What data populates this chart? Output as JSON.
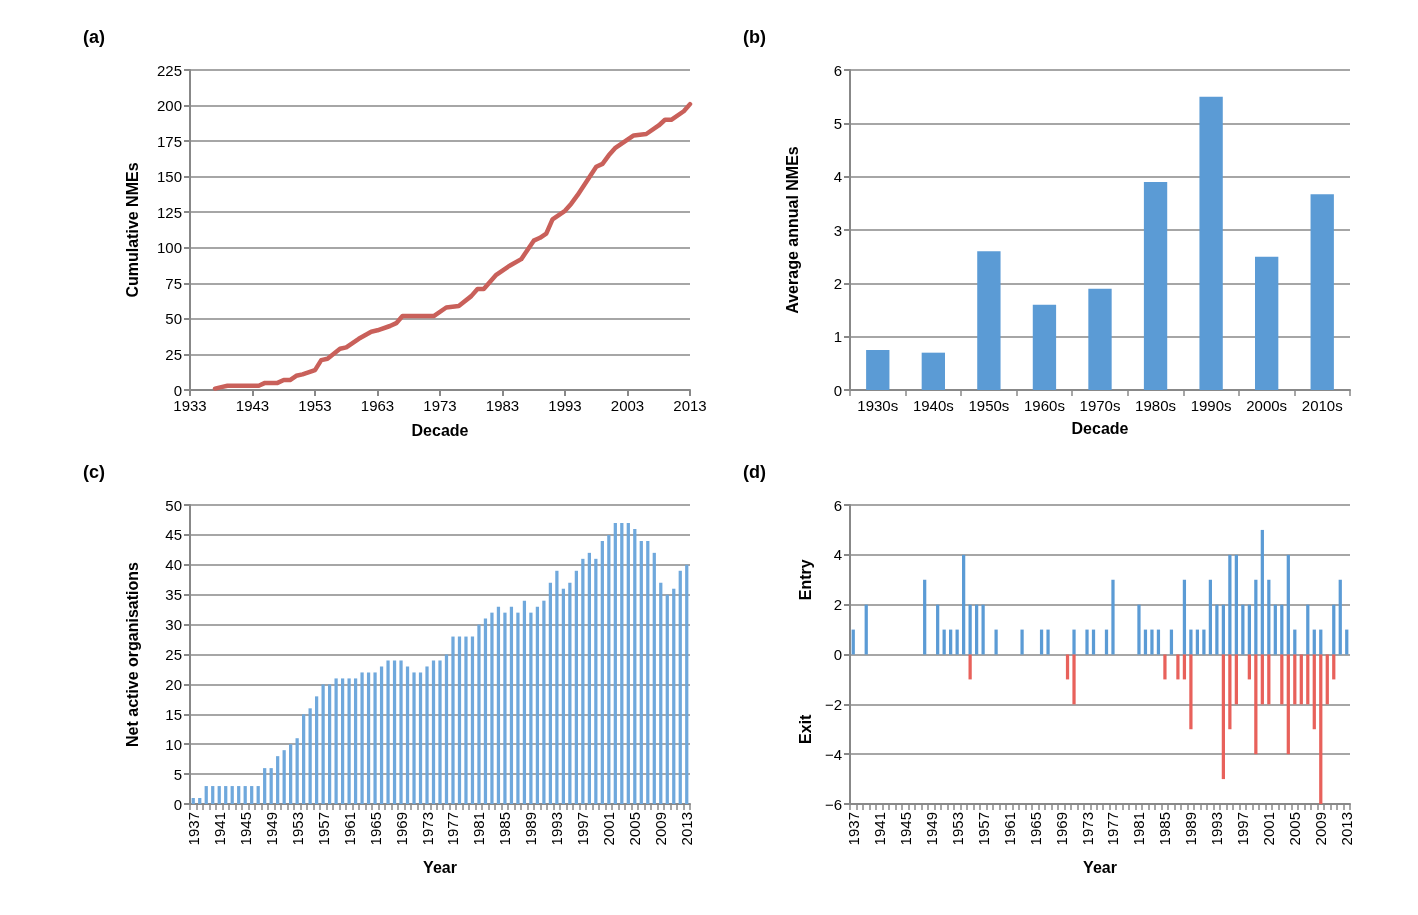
{
  "chart_data": [
    {
      "type": "line",
      "title": "(a)",
      "xlabel": "Decade",
      "ylabel": "Cumulative NMEs",
      "marker": "none",
      "grid": "y",
      "x": [
        1937,
        1938,
        1939,
        1944,
        1945,
        1947,
        1948,
        1949,
        1950,
        1951,
        1953,
        1954,
        1955,
        1957,
        1958,
        1960,
        1962,
        1963,
        1965,
        1966,
        1967,
        1969,
        1972,
        1974,
        1976,
        1978,
        1979,
        1980,
        1982,
        1983,
        1984,
        1986,
        1988,
        1989,
        1990,
        1991,
        1993,
        1994,
        1995,
        1998,
        1999,
        2000,
        2001,
        2003,
        2004,
        2006,
        2008,
        2009,
        2010,
        2012,
        2013
      ],
      "series": [
        {
          "color": "#c9605a",
          "values": [
            1,
            2,
            3,
            3,
            5,
            5,
            7,
            7,
            10,
            11,
            14,
            21,
            22,
            29,
            30,
            36,
            41,
            42,
            45,
            47,
            52,
            52,
            52,
            58,
            59,
            66,
            71,
            71,
            81,
            84,
            87,
            92,
            105,
            107,
            110,
            120,
            126,
            131,
            137,
            157,
            159,
            165,
            170,
            176,
            179,
            180,
            186,
            190,
            190,
            196,
            201
          ]
        }
      ],
      "xlim": [
        1933,
        2013
      ],
      "xticks": [
        1933,
        1943,
        1953,
        1963,
        1973,
        1983,
        1993,
        2003,
        2013
      ],
      "ylim": [
        0,
        225
      ],
      "yticks": [
        0,
        25,
        50,
        75,
        100,
        125,
        150,
        175,
        200,
        225
      ]
    },
    {
      "type": "bar",
      "title": "(b)",
      "xlabel": "Decade",
      "ylabel": "Average annual NMEs",
      "grid": "y",
      "categories": [
        "1930s",
        "1940s",
        "1950s",
        "1960s",
        "1970s",
        "1980s",
        "1990s",
        "2000s",
        "2010s"
      ],
      "series": [
        {
          "color": "#5b9bd5",
          "values": [
            0.75,
            0.7,
            2.6,
            1.6,
            1.9,
            3.9,
            5.5,
            2.5,
            3.67
          ]
        }
      ],
      "ylim": [
        0,
        6
      ],
      "yticks": [
        0,
        1,
        2,
        3,
        4,
        5,
        6
      ]
    },
    {
      "type": "bar",
      "title": "(c)",
      "xlabel": "Year",
      "ylabel": "Net active organisations",
      "grid": "y",
      "categories": [
        "1937",
        null,
        null,
        null,
        "1941",
        null,
        null,
        null,
        "1945",
        null,
        null,
        null,
        "1949",
        null,
        null,
        null,
        "1953",
        null,
        null,
        null,
        "1957",
        null,
        null,
        null,
        "1961",
        null,
        null,
        null,
        "1965",
        null,
        null,
        null,
        "1969",
        null,
        null,
        null,
        "1973",
        null,
        null,
        null,
        "1977",
        null,
        null,
        null,
        "1981",
        null,
        null,
        null,
        "1985",
        null,
        null,
        null,
        "1989",
        null,
        null,
        null,
        "1993",
        null,
        null,
        null,
        "1997",
        null,
        null,
        null,
        "2001",
        null,
        null,
        null,
        "2005",
        null,
        null,
        null,
        "2009",
        null,
        null,
        null,
        "2013"
      ],
      "series": [
        {
          "color": "#6fa8dc",
          "values": [
            1,
            1,
            3,
            3,
            3,
            3,
            3,
            3,
            3,
            3,
            3,
            6,
            6,
            8,
            9,
            10,
            11,
            15,
            16,
            18,
            20,
            20,
            21,
            21,
            21,
            21,
            22,
            22,
            22,
            23,
            24,
            24,
            24,
            23,
            22,
            22,
            23,
            24,
            24,
            25,
            28,
            28,
            28,
            28,
            30,
            31,
            32,
            33,
            32,
            33,
            32,
            34,
            32,
            33,
            34,
            37,
            39,
            36,
            37,
            39,
            41,
            42,
            41,
            44,
            45,
            47,
            47,
            47,
            46,
            44,
            44,
            42,
            37,
            35,
            36,
            39,
            40
          ]
        }
      ],
      "ylim": [
        0,
        50
      ],
      "yticks": [
        0,
        5,
        10,
        15,
        20,
        25,
        30,
        35,
        40,
        45,
        50
      ]
    },
    {
      "type": "bar",
      "title": "(d)",
      "xlabel": "Year",
      "grid": "y",
      "stacked": true,
      "annotations": [
        "Entry",
        "Exit"
      ],
      "categories": [
        "1937",
        null,
        null,
        null,
        "1941",
        null,
        null,
        null,
        "1945",
        null,
        null,
        null,
        "1949",
        null,
        null,
        null,
        "1953",
        null,
        null,
        null,
        "1957",
        null,
        null,
        null,
        "1961",
        null,
        null,
        null,
        "1965",
        null,
        null,
        null,
        "1969",
        null,
        null,
        null,
        "1973",
        null,
        null,
        null,
        "1977",
        null,
        null,
        null,
        "1981",
        null,
        null,
        null,
        "1985",
        null,
        null,
        null,
        "1989",
        null,
        null,
        null,
        "1993",
        null,
        null,
        null,
        "1997",
        null,
        null,
        null,
        "2001",
        null,
        null,
        null,
        "2005",
        null,
        null,
        null,
        "2009",
        null,
        null,
        null,
        "2013"
      ],
      "series": [
        {
          "color": "#5b9bd5",
          "values": [
            1,
            null,
            2,
            null,
            null,
            null,
            null,
            null,
            null,
            null,
            null,
            3,
            null,
            2,
            1,
            1,
            1,
            4,
            2,
            2,
            2,
            null,
            1,
            null,
            null,
            null,
            1,
            null,
            null,
            1,
            1,
            null,
            null,
            null,
            1,
            null,
            1,
            1,
            null,
            1,
            3,
            null,
            null,
            null,
            2,
            1,
            1,
            1,
            null,
            1,
            null,
            3,
            1,
            1,
            1,
            3,
            2,
            2,
            4,
            4,
            2,
            2,
            3,
            5,
            3,
            2,
            2,
            4,
            1,
            null,
            2,
            1,
            1,
            null,
            2,
            3,
            1
          ]
        },
        {
          "color": "#e8615b",
          "values": [
            null,
            null,
            null,
            null,
            null,
            null,
            null,
            null,
            null,
            null,
            null,
            null,
            null,
            null,
            null,
            null,
            null,
            null,
            -1,
            null,
            null,
            null,
            null,
            null,
            null,
            null,
            null,
            null,
            null,
            null,
            null,
            null,
            null,
            -1,
            -2,
            null,
            null,
            null,
            null,
            null,
            null,
            null,
            null,
            null,
            null,
            null,
            null,
            null,
            -1,
            null,
            -1,
            -1,
            -3,
            null,
            null,
            null,
            null,
            -5,
            -3,
            -2,
            null,
            -1,
            -4,
            -2,
            -2,
            null,
            -2,
            -4,
            -2,
            -2,
            -2,
            -3,
            -6,
            -2,
            -1,
            null,
            null
          ]
        }
      ],
      "ylim": [
        -6,
        6
      ],
      "yticks": [
        -6,
        -4,
        -2,
        0,
        2,
        4,
        6
      ]
    }
  ]
}
